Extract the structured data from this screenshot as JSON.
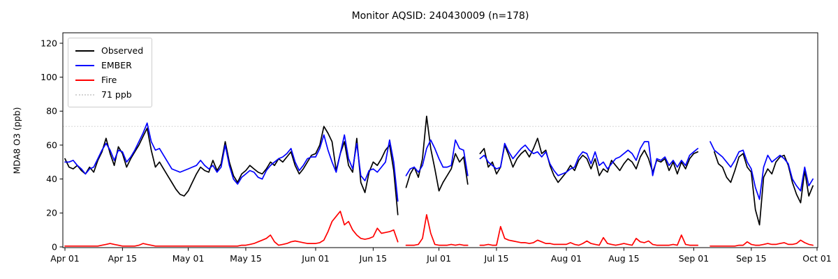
{
  "figure": {
    "title": "Monitor AQSID: 240430009 (n=178)"
  },
  "chart_data": {
    "type": "line",
    "title": "Monitor AQSID: 240430009 (n=178)",
    "xlabel": "",
    "ylabel": "MDA8 O3 (ppb)",
    "ylim": [
      0,
      126
    ],
    "y_ticks": [
      0,
      20,
      40,
      60,
      80,
      100,
      120
    ],
    "x_start_date": "Apr 01",
    "x_end_date": "Oct 01",
    "x_unit": "days since Apr 01",
    "x_ticks": [
      {
        "label": "Apr 01",
        "day": 0
      },
      {
        "label": "Apr 15",
        "day": 14
      },
      {
        "label": "May 01",
        "day": 30
      },
      {
        "label": "May 15",
        "day": 44
      },
      {
        "label": "Jun 01",
        "day": 61
      },
      {
        "label": "Jun 15",
        "day": 75
      },
      {
        "label": "Jul 01",
        "day": 91
      },
      {
        "label": "Jul 15",
        "day": 105
      },
      {
        "label": "Aug 01",
        "day": 122
      },
      {
        "label": "Aug 15",
        "day": 136
      },
      {
        "label": "Sep 01",
        "day": 153
      },
      {
        "label": "Sep 15",
        "day": 167
      },
      {
        "label": "Oct 01",
        "day": 183
      }
    ],
    "grid": false,
    "legend_position": "upper-left",
    "reference_line": {
      "label": "71 ppb",
      "value": 71,
      "color": "#d3d3d3",
      "style": "dotted"
    },
    "series": [
      {
        "name": "Observed",
        "color": "#000000",
        "values": [
          52,
          47,
          46,
          48,
          45,
          43,
          47,
          44,
          51,
          56,
          64,
          55,
          48,
          59,
          55,
          47,
          52,
          56,
          60,
          65,
          70,
          57,
          47,
          50,
          46,
          42,
          38,
          34,
          31,
          30,
          33,
          38,
          43,
          47,
          45,
          44,
          51,
          45,
          49,
          62,
          50,
          42,
          38,
          43,
          45,
          48,
          46,
          44,
          43,
          46,
          50,
          48,
          52,
          50,
          53,
          56,
          48,
          43,
          46,
          50,
          54,
          55,
          60,
          71,
          67,
          62,
          45,
          55,
          62,
          48,
          44,
          64,
          38,
          32,
          44,
          50,
          48,
          52,
          57,
          60,
          45,
          19,
          null,
          35,
          43,
          47,
          41,
          52,
          77,
          58,
          46,
          33,
          38,
          42,
          46,
          55,
          50,
          53,
          37,
          null,
          null,
          55,
          58,
          47,
          50,
          43,
          47,
          60,
          54,
          47,
          52,
          55,
          57,
          53,
          58,
          64,
          55,
          57,
          48,
          42,
          38,
          41,
          44,
          48,
          45,
          51,
          54,
          52,
          46,
          52,
          42,
          46,
          44,
          51,
          48,
          45,
          49,
          52,
          50,
          46,
          53,
          57,
          52,
          44,
          51,
          50,
          52,
          45,
          50,
          43,
          50,
          46,
          52,
          55,
          56,
          null,
          null,
          null,
          56,
          49,
          47,
          41,
          38,
          45,
          53,
          55,
          47,
          44,
          22,
          13,
          41,
          46,
          43,
          50,
          53,
          54,
          48,
          38,
          31,
          26,
          45,
          30,
          36
        ]
      },
      {
        "name": "EMBER",
        "color": "#0000ff",
        "values": [
          50,
          50,
          51,
          48,
          46,
          43,
          46,
          47,
          52,
          57,
          61,
          57,
          51,
          57,
          56,
          50,
          53,
          57,
          62,
          67,
          73,
          62,
          57,
          58,
          54,
          50,
          46,
          45,
          44,
          45,
          46,
          47,
          48,
          51,
          48,
          46,
          48,
          44,
          47,
          60,
          48,
          40,
          37,
          41,
          43,
          45,
          44,
          41,
          40,
          45,
          48,
          50,
          52,
          53,
          55,
          58,
          50,
          45,
          48,
          52,
          53,
          53,
          58,
          66,
          57,
          50,
          44,
          55,
          66,
          52,
          46,
          61,
          42,
          39,
          45,
          46,
          44,
          47,
          50,
          63,
          50,
          27,
          null,
          42,
          46,
          47,
          44,
          48,
          58,
          63,
          58,
          52,
          47,
          47,
          48,
          63,
          58,
          57,
          42,
          null,
          null,
          52,
          54,
          50,
          48,
          46,
          47,
          61,
          56,
          52,
          55,
          58,
          60,
          57,
          55,
          56,
          53,
          56,
          49,
          45,
          42,
          43,
          44,
          46,
          47,
          53,
          56,
          55,
          49,
          56,
          48,
          50,
          46,
          49,
          52,
          53,
          55,
          57,
          55,
          51,
          58,
          62,
          62,
          42,
          52,
          51,
          53,
          48,
          51,
          47,
          51,
          48,
          54,
          56,
          58,
          null,
          null,
          62,
          57,
          55,
          53,
          50,
          47,
          51,
          56,
          57,
          50,
          46,
          35,
          28,
          47,
          54,
          50,
          52,
          54,
          52,
          49,
          40,
          36,
          33,
          47,
          36,
          40
        ]
      },
      {
        "name": "Fire",
        "color": "#ff0000",
        "values": [
          0.5,
          0.5,
          0.5,
          0.5,
          0.5,
          0.5,
          0.5,
          0.5,
          0.5,
          1,
          1.5,
          2,
          1.5,
          1,
          0.5,
          0.5,
          0.5,
          0.5,
          1,
          2,
          1.5,
          1,
          0.5,
          0.5,
          0.5,
          0.5,
          0.5,
          0.5,
          0.5,
          0.5,
          0.5,
          0.5,
          0.5,
          0.5,
          0.5,
          0.5,
          0.5,
          0.5,
          0.5,
          0.5,
          0.5,
          0.5,
          0.5,
          1,
          1,
          1.5,
          2,
          3,
          4,
          5,
          7,
          3,
          1,
          1.5,
          2,
          3,
          3.5,
          3,
          2.5,
          2,
          2,
          2,
          2.5,
          4,
          9,
          15,
          18,
          21,
          13,
          15,
          10,
          7,
          5,
          4.5,
          5,
          6,
          11,
          8,
          8.5,
          9,
          10,
          3,
          null,
          1,
          1,
          1,
          1.5,
          5,
          19,
          8,
          1.5,
          1,
          1,
          1,
          1.5,
          1,
          1.5,
          1,
          1,
          null,
          null,
          1,
          1,
          1.5,
          1,
          1,
          12,
          5,
          4,
          3.5,
          3,
          2.5,
          2.5,
          2,
          2.5,
          4,
          3,
          2,
          2,
          1.5,
          1.5,
          1.5,
          1.5,
          2.5,
          1.5,
          1,
          2,
          3.5,
          2,
          1.5,
          1,
          5.5,
          2,
          1.5,
          1,
          1.5,
          2,
          1.5,
          1,
          5,
          3,
          2.5,
          3.5,
          1.5,
          1,
          1,
          1,
          1,
          1.5,
          1,
          7,
          1.5,
          1,
          1,
          1,
          null,
          null,
          0.5,
          0.5,
          0.5,
          0.5,
          0.5,
          0.5,
          0.5,
          1,
          1,
          3,
          1.5,
          1,
          1,
          1.5,
          2,
          1.5,
          1.5,
          2,
          2.5,
          1.5,
          1.5,
          2,
          4,
          2.5,
          1.5,
          1
        ]
      }
    ],
    "legend_entries": [
      "Observed",
      "EMBER",
      "Fire",
      "71 ppb"
    ]
  },
  "layout_colors": {
    "axes": "#000000",
    "background": "#ffffff",
    "tick_label": "#000000"
  }
}
